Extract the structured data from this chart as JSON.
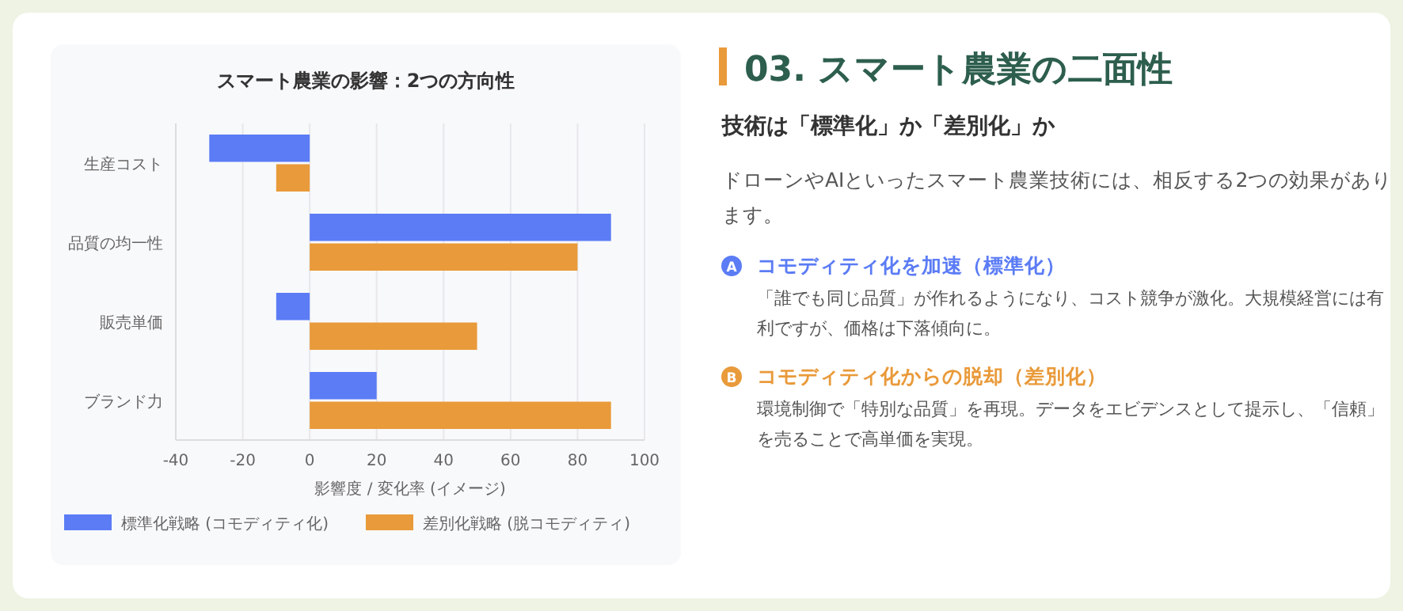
{
  "chart_data": [
    {
      "type": "bar",
      "orientation": "horizontal",
      "title": "スマート農業の影響：2つの方向性",
      "xlabel": "影響度 / 変化率 (イメージ)",
      "categories": [
        "生産コスト",
        "品質の均一性",
        "販売単価",
        "ブランド力"
      ],
      "series": [
        {
          "name": "標準化戦略 (コモディティ化)",
          "color": "#5b7cf5",
          "values": [
            -30,
            90,
            -10,
            20
          ]
        },
        {
          "name": "差別化戦略 (脱コモディティ)",
          "color": "#e99a3a",
          "values": [
            -10,
            80,
            50,
            90
          ]
        }
      ],
      "xlim": [
        -40,
        100
      ],
      "xticks": [
        -40,
        -20,
        0,
        20,
        40,
        60,
        80,
        100
      ],
      "grid": "x",
      "legend": "bottom"
    },
    {
      "type": "other",
      "title": "03. スマート農業の二面性",
      "subtitle": "技術は「標準化」か「差別化」か",
      "annotations": [
        "ドローンやAIといったスマート農業技術には、相反する2つの効果があります。",
        "A",
        "コモディティ化を加速（標準化）",
        "「誰でも同じ品質」が作れるようになり、コスト競争が激化。大規模経営には有利ですが、価格は下落傾向に。",
        "B",
        "コモディティ化からの脱却（差別化）",
        "環境制御で「特別な品質」を再現。データをエビデンスとして提示し、「信頼」を売ることで高単価を実現。"
      ]
    }
  ]
}
